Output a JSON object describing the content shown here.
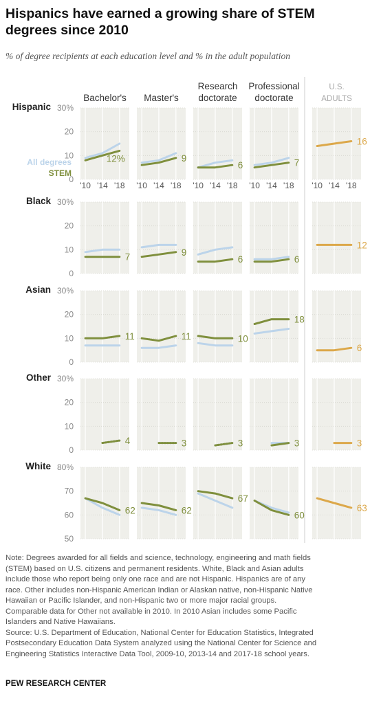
{
  "header": {
    "title": "Hispanics have earned a growing share of STEM degrees since 2010",
    "subtitle": "% of degree recipients at each education level and % in the adult population"
  },
  "columns": [
    "Bachelor's",
    "Master's",
    "Research doctorate",
    "Professional doctorate",
    "U.S. ADULTS"
  ],
  "years": [
    "'10",
    "'14",
    "'18"
  ],
  "legend": {
    "all_degrees": "All degrees",
    "stem": "STEM"
  },
  "colors": {
    "all_degrees": "#bcd4ea",
    "stem": "#7f8f3d",
    "adults": "#dca84a",
    "panel_bg": "#efefea",
    "grid": "#ffffff",
    "axis_text": "#888888"
  },
  "chart_data": {
    "type": "line",
    "x": [
      2010,
      2014,
      2018
    ],
    "groups": [
      {
        "name": "Hispanic",
        "ylim": [
          0,
          30
        ],
        "yticks": [
          "30%",
          "20",
          "10",
          "0"
        ],
        "panels": [
          {
            "column": "Bachelor's",
            "all": [
              9,
              11,
              15
            ],
            "stem": [
              8,
              10,
              12
            ],
            "label": "12%"
          },
          {
            "column": "Master's",
            "all": [
              7,
              8,
              11
            ],
            "stem": [
              6,
              7,
              9
            ],
            "label": "9"
          },
          {
            "column": "Research doctorate",
            "all": [
              5,
              7,
              8
            ],
            "stem": [
              5,
              5,
              6
            ],
            "label": "6"
          },
          {
            "column": "Professional doctorate",
            "all": [
              6,
              7,
              9
            ],
            "stem": [
              5,
              6,
              7
            ],
            "label": "7"
          },
          {
            "column": "U.S. ADULTS",
            "adults": [
              14,
              15,
              16
            ],
            "label": "16"
          }
        ]
      },
      {
        "name": "Black",
        "ylim": [
          0,
          30
        ],
        "yticks": [
          "30%",
          "20",
          "10",
          "0"
        ],
        "panels": [
          {
            "column": "Bachelor's",
            "all": [
              9,
              10,
              10
            ],
            "stem": [
              7,
              7,
              7
            ],
            "label": "7"
          },
          {
            "column": "Master's",
            "all": [
              11,
              12,
              12
            ],
            "stem": [
              7,
              8,
              9
            ],
            "label": "9"
          },
          {
            "column": "Research doctorate",
            "all": [
              8,
              10,
              11
            ],
            "stem": [
              5,
              5,
              6
            ],
            "label": "6"
          },
          {
            "column": "Professional doctorate",
            "all": [
              6,
              6,
              7
            ],
            "stem": [
              5,
              5,
              6
            ],
            "label": "6"
          },
          {
            "column": "U.S. ADULTS",
            "adults": [
              12,
              12,
              12
            ],
            "label": "12"
          }
        ]
      },
      {
        "name": "Asian",
        "ylim": [
          0,
          30
        ],
        "yticks": [
          "30%",
          "20",
          "10",
          "0"
        ],
        "panels": [
          {
            "column": "Bachelor's",
            "all": [
              7,
              7,
              7
            ],
            "stem": [
              10,
              10,
              11
            ],
            "label": "11"
          },
          {
            "column": "Master's",
            "all": [
              6,
              6,
              7
            ],
            "stem": [
              10,
              9,
              11
            ],
            "label": "11"
          },
          {
            "column": "Research doctorate",
            "all": [
              8,
              7,
              7
            ],
            "stem": [
              11,
              10,
              10
            ],
            "label": "10"
          },
          {
            "column": "Professional doctorate",
            "all": [
              12,
              13,
              14
            ],
            "stem": [
              16,
              18,
              18
            ],
            "label": "18"
          },
          {
            "column": "U.S. ADULTS",
            "adults": [
              5,
              5,
              6
            ],
            "label": "6"
          }
        ]
      },
      {
        "name": "Other",
        "ylim": [
          0,
          30
        ],
        "yticks": [
          "30%",
          "20",
          "10",
          "0"
        ],
        "panels": [
          {
            "column": "Bachelor's",
            "all": [
              null,
              3,
              4
            ],
            "stem": [
              null,
              3,
              4
            ],
            "label": "4",
            "dotted": true
          },
          {
            "column": "Master's",
            "all": [
              null,
              3,
              3
            ],
            "stem": [
              null,
              3,
              3
            ],
            "label": "3",
            "dotted": true
          },
          {
            "column": "Research doctorate",
            "all": [
              null,
              2,
              3
            ],
            "stem": [
              null,
              2,
              3
            ],
            "label": "3",
            "dotted": true
          },
          {
            "column": "Professional doctorate",
            "all": [
              null,
              3,
              3
            ],
            "stem": [
              null,
              2,
              3
            ],
            "label": "3"
          },
          {
            "column": "U.S. ADULTS",
            "adults": [
              null,
              3,
              3
            ],
            "label": "3"
          }
        ]
      },
      {
        "name": "White",
        "ylim": [
          50,
          80
        ],
        "yticks": [
          "80%",
          "70",
          "60",
          "50"
        ],
        "panels": [
          {
            "column": "Bachelor's",
            "all": [
              67,
              63,
              60
            ],
            "stem": [
              67,
              65,
              62
            ],
            "label": "62"
          },
          {
            "column": "Master's",
            "all": [
              63,
              62,
              60
            ],
            "stem": [
              65,
              64,
              62
            ],
            "label": "62"
          },
          {
            "column": "Research doctorate",
            "all": [
              69,
              66,
              63
            ],
            "stem": [
              70,
              69,
              67
            ],
            "label": "67"
          },
          {
            "column": "Professional doctorate",
            "all": [
              66,
              63,
              61
            ],
            "stem": [
              66,
              62,
              60
            ],
            "label": "60"
          },
          {
            "column": "U.S. ADULTS",
            "adults": [
              67,
              65,
              63
            ],
            "label": "63"
          }
        ]
      }
    ]
  },
  "note": [
    "Note: Degrees awarded for all fields and science, technology, engineering and math fields",
    "(STEM) based on U.S. citizens and permanent residents. White, Black and Asian adults",
    "include those who report being only one race and are not Hispanic. Hispanics are of any",
    "race. Other includes non-Hispanic American Indian or Alaskan native, non-Hispanic Native",
    "Hawaiian or Pacific Islander, and non-Hispanic two or more major racial groups.",
    "Comparable data for Other not available in 2010. In 2010 Asian includes some Pacific",
    "Islanders and Native Hawaiians."
  ],
  "source": [
    "Source: U.S. Department of Education, National Center for Education Statistics, Integrated",
    "Postsecondary Education Data System analyzed using the National Center for Science and",
    "Engineering Statistics Interactive Data Tool, 2009-10, 2013-14 and 2017-18 school years."
  ],
  "credit": "PEW RESEARCH CENTER"
}
